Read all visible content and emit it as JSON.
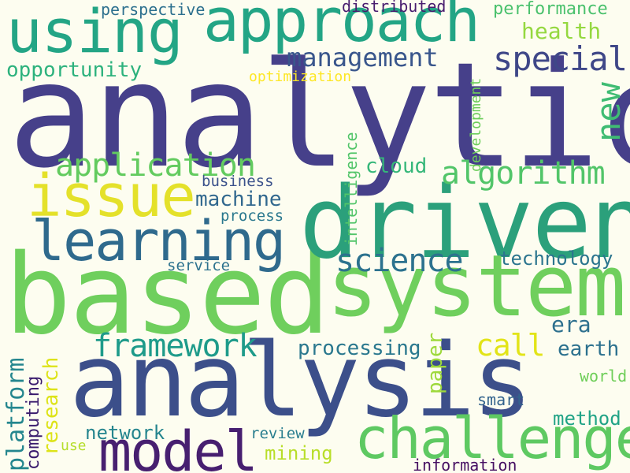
{
  "words": [
    {
      "text": "analytics",
      "color": "#46408a"
    },
    {
      "text": "based",
      "color": "#6fcf5d"
    },
    {
      "text": "driven",
      "color": "#2ba07b"
    },
    {
      "text": "system",
      "color": "#6fcf5d"
    },
    {
      "text": "analysis",
      "color": "#3c4f8a"
    },
    {
      "text": "using",
      "color": "#23a585"
    },
    {
      "text": "approach",
      "color": "#23a585"
    },
    {
      "text": "issue",
      "color": "#e4e12a"
    },
    {
      "text": "learning",
      "color": "#2f6a8d"
    },
    {
      "text": "challenge",
      "color": "#5ec962"
    },
    {
      "text": "model",
      "color": "#471f70"
    },
    {
      "text": "special",
      "color": "#3f4788"
    },
    {
      "text": "management",
      "color": "#39568c"
    },
    {
      "text": "application",
      "color": "#63cb5f"
    },
    {
      "text": "algorithm",
      "color": "#52c569"
    },
    {
      "text": "framework",
      "color": "#1e9b8a"
    },
    {
      "text": "science",
      "color": "#2c728e"
    },
    {
      "text": "new",
      "color": "#3fbc73"
    },
    {
      "text": "health",
      "color": "#95d840"
    },
    {
      "text": "performance",
      "color": "#4ac16d"
    },
    {
      "text": "opportunity",
      "color": "#2db27d"
    },
    {
      "text": "perspective",
      "color": "#2d708e"
    },
    {
      "text": "distributed",
      "color": "#481c6e"
    },
    {
      "text": "optimization",
      "color": "#fde725"
    },
    {
      "text": "machine",
      "color": "#31688e"
    },
    {
      "text": "business",
      "color": "#3b528b"
    },
    {
      "text": "process",
      "color": "#2a788e"
    },
    {
      "text": "cloud",
      "color": "#35b779"
    },
    {
      "text": "intelligence",
      "color": "#52c569"
    },
    {
      "text": "development",
      "color": "#6ccd5a"
    },
    {
      "text": "technology",
      "color": "#2b758e"
    },
    {
      "text": "service",
      "color": "#2c728e"
    },
    {
      "text": "era",
      "color": "#2d708e"
    },
    {
      "text": "call",
      "color": "#e2e418"
    },
    {
      "text": "earth",
      "color": "#2c718e"
    },
    {
      "text": "processing",
      "color": "#2a788e"
    },
    {
      "text": "paper",
      "color": "#9dd93b"
    },
    {
      "text": "world",
      "color": "#6ece58"
    },
    {
      "text": "smart",
      "color": "#33638d"
    },
    {
      "text": "method",
      "color": "#20a386"
    },
    {
      "text": "platform",
      "color": "#24868e"
    },
    {
      "text": "research",
      "color": "#dde318"
    },
    {
      "text": "computing",
      "color": "#3b1c6e"
    },
    {
      "text": "network",
      "color": "#25858e"
    },
    {
      "text": "review",
      "color": "#287d8e"
    },
    {
      "text": "use",
      "color": "#b5de2b"
    },
    {
      "text": "mining",
      "color": "#b8de29"
    },
    {
      "text": "information",
      "color": "#471063"
    }
  ]
}
